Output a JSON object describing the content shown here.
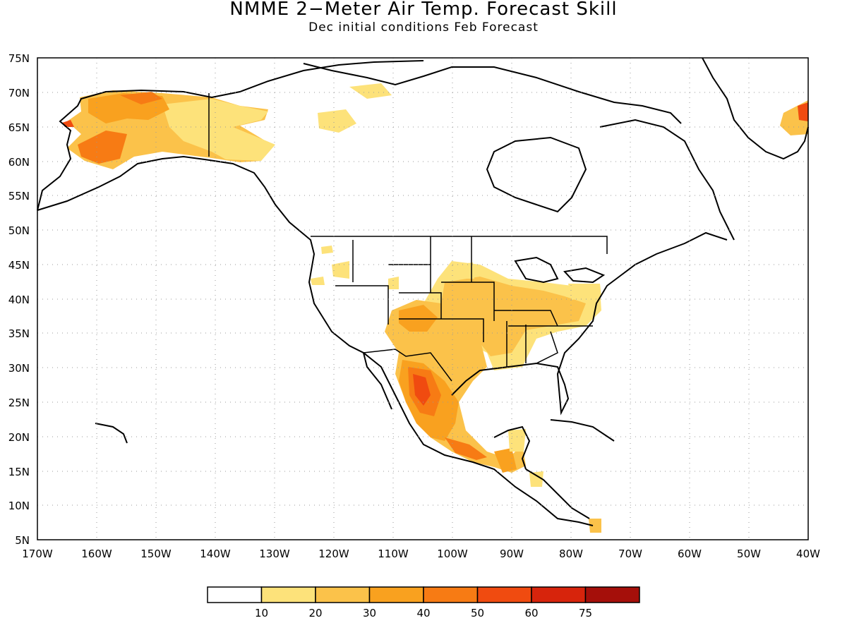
{
  "title": "NMME 2−Meter Air Temp. Forecast Skill",
  "subtitle": "Dec initial conditions  Feb Forecast",
  "map": {
    "lat_labels": [
      "75N",
      "70N",
      "65N",
      "60N",
      "55N",
      "50N",
      "45N",
      "40N",
      "35N",
      "30N",
      "25N",
      "20N",
      "15N",
      "10N",
      "5N"
    ],
    "lon_labels": [
      "170W",
      "160W",
      "150W",
      "140W",
      "130W",
      "120W",
      "110W",
      "100W",
      "90W",
      "80W",
      "70W",
      "60W",
      "50W",
      "40W"
    ],
    "lat_range": [
      5,
      75
    ],
    "lon_range": [
      -170,
      -40
    ],
    "grid": "dotted"
  },
  "colorbar": {
    "labels": [
      "10",
      "20",
      "30",
      "40",
      "50",
      "60",
      "75"
    ],
    "colors": [
      "#ffffff",
      "#fde27a",
      "#fbc24a",
      "#f9a11f",
      "#f77b14",
      "#f04b10",
      "#d7240c",
      "#a50f0a"
    ]
  }
}
